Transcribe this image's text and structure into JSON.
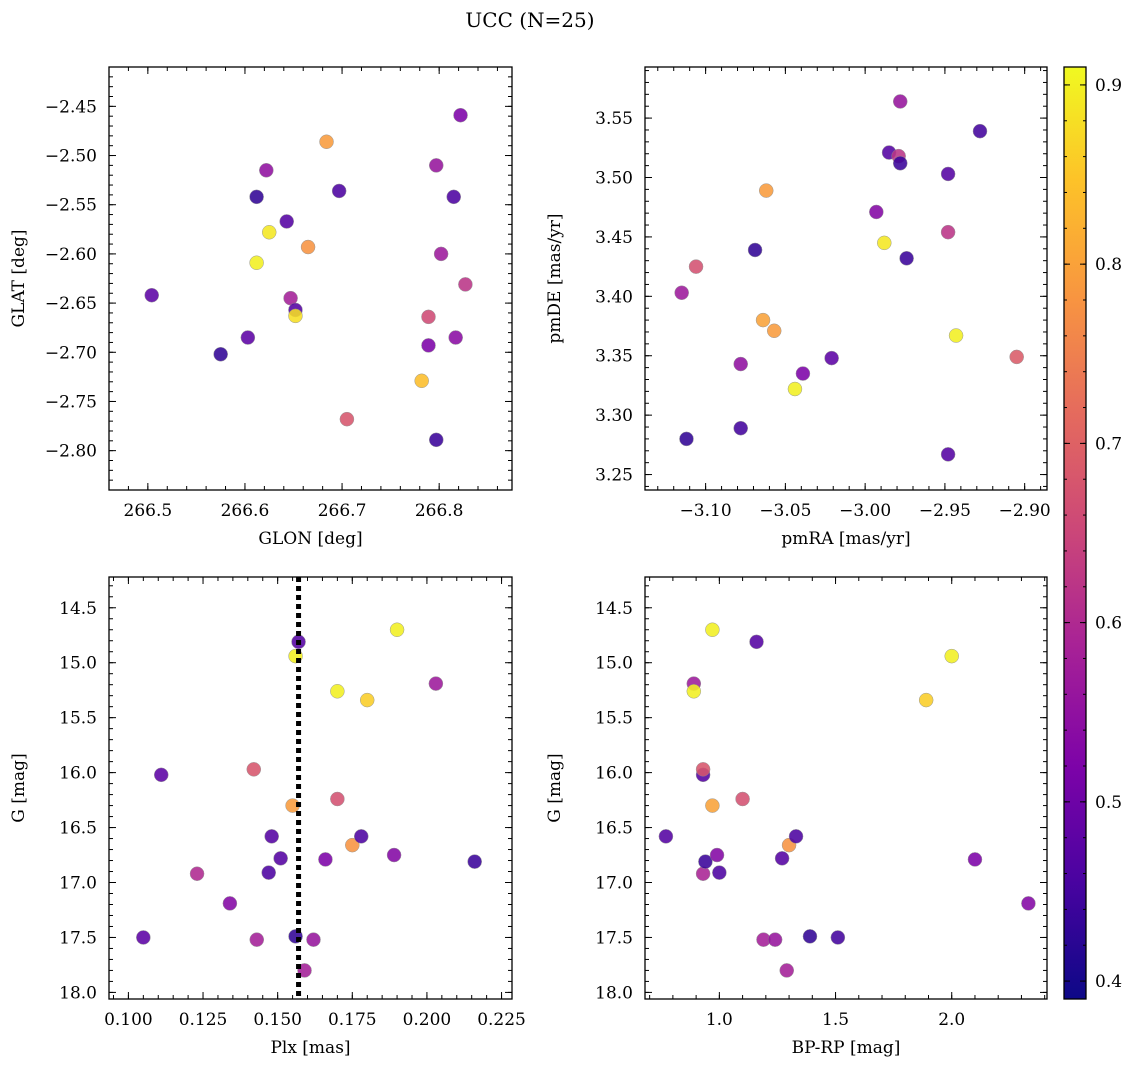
{
  "title": "UCC (N=25)",
  "colors": {
    "colormap": "plasma",
    "dotted_line": "#000000"
  },
  "colorbar": {
    "vmin": 0.39,
    "vmax": 0.91,
    "ticks": [
      "0.4",
      "0.5",
      "0.6",
      "0.7",
      "0.8",
      "0.9"
    ]
  },
  "chart_data": [
    {
      "type": "scatter",
      "xlabel": "GLON [deg]",
      "ylabel": "GLAT [deg]",
      "xlim": [
        266.46,
        266.875
      ],
      "ylim": [
        -2.84,
        -2.41
      ],
      "y_inverted": false,
      "xticks": [
        "266.5",
        "266.6",
        "266.7",
        "266.8"
      ],
      "yticks": [
        "-2.45",
        "-2.50",
        "-2.55",
        "-2.60",
        "-2.65",
        "-2.70",
        "-2.75",
        "-2.80"
      ],
      "points": [
        {
          "x": 266.504,
          "y": -2.642,
          "c": 0.48
        },
        {
          "x": 266.575,
          "y": -2.702,
          "c": 0.43
        },
        {
          "x": 266.603,
          "y": -2.685,
          "c": 0.48
        },
        {
          "x": 266.612,
          "y": -2.542,
          "c": 0.43
        },
        {
          "x": 266.612,
          "y": -2.609,
          "c": 0.9
        },
        {
          "x": 266.622,
          "y": -2.515,
          "c": 0.55
        },
        {
          "x": 266.625,
          "y": -2.578,
          "c": 0.89
        },
        {
          "x": 266.643,
          "y": -2.567,
          "c": 0.47
        },
        {
          "x": 266.647,
          "y": -2.645,
          "c": 0.58
        },
        {
          "x": 266.652,
          "y": -2.657,
          "c": 0.47
        },
        {
          "x": 266.652,
          "y": -2.663,
          "c": 0.88
        },
        {
          "x": 266.665,
          "y": -2.593,
          "c": 0.78
        },
        {
          "x": 266.684,
          "y": -2.486,
          "c": 0.79
        },
        {
          "x": 266.697,
          "y": -2.536,
          "c": 0.46
        },
        {
          "x": 266.705,
          "y": -2.768,
          "c": 0.68
        },
        {
          "x": 266.782,
          "y": -2.729,
          "c": 0.84
        },
        {
          "x": 266.789,
          "y": -2.664,
          "c": 0.66
        },
        {
          "x": 266.789,
          "y": -2.693,
          "c": 0.52
        },
        {
          "x": 266.797,
          "y": -2.51,
          "c": 0.56
        },
        {
          "x": 266.797,
          "y": -2.789,
          "c": 0.44
        },
        {
          "x": 266.802,
          "y": -2.6,
          "c": 0.57
        },
        {
          "x": 266.815,
          "y": -2.542,
          "c": 0.46
        },
        {
          "x": 266.817,
          "y": -2.685,
          "c": 0.54
        },
        {
          "x": 266.822,
          "y": -2.459,
          "c": 0.52
        },
        {
          "x": 266.827,
          "y": -2.631,
          "c": 0.62
        }
      ]
    },
    {
      "type": "scatter",
      "xlabel": "pmRA [mas/yr]",
      "ylabel": "pmDE [mas/yr]",
      "xlim": [
        -3.138,
        -2.886
      ],
      "ylim": [
        3.237,
        3.593
      ],
      "y_inverted": false,
      "xticks": [
        "-3.10",
        "-3.05",
        "-3.00",
        "-2.95",
        "-2.90"
      ],
      "yticks": [
        "3.25",
        "3.30",
        "3.35",
        "3.40",
        "3.45",
        "3.50",
        "3.55"
      ],
      "points": [
        {
          "x": -3.115,
          "y": 3.403,
          "c": 0.57
        },
        {
          "x": -3.112,
          "y": 3.28,
          "c": 0.43
        },
        {
          "x": -3.106,
          "y": 3.425,
          "c": 0.67
        },
        {
          "x": -3.078,
          "y": 3.343,
          "c": 0.55
        },
        {
          "x": -3.078,
          "y": 3.289,
          "c": 0.45
        },
        {
          "x": -3.069,
          "y": 3.439,
          "c": 0.43
        },
        {
          "x": -3.064,
          "y": 3.38,
          "c": 0.8
        },
        {
          "x": -3.062,
          "y": 3.489,
          "c": 0.79
        },
        {
          "x": -3.057,
          "y": 3.371,
          "c": 0.79
        },
        {
          "x": -3.044,
          "y": 3.322,
          "c": 0.9
        },
        {
          "x": -3.039,
          "y": 3.335,
          "c": 0.52
        },
        {
          "x": -3.021,
          "y": 3.348,
          "c": 0.48
        },
        {
          "x": -2.993,
          "y": 3.471,
          "c": 0.53
        },
        {
          "x": -2.988,
          "y": 3.445,
          "c": 0.89
        },
        {
          "x": -2.985,
          "y": 3.521,
          "c": 0.47
        },
        {
          "x": -2.979,
          "y": 3.518,
          "c": 0.62
        },
        {
          "x": -2.978,
          "y": 3.512,
          "c": 0.44
        },
        {
          "x": -2.978,
          "y": 3.564,
          "c": 0.56
        },
        {
          "x": -2.974,
          "y": 3.432,
          "c": 0.44
        },
        {
          "x": -2.948,
          "y": 3.503,
          "c": 0.47
        },
        {
          "x": -2.948,
          "y": 3.454,
          "c": 0.62
        },
        {
          "x": -2.948,
          "y": 3.267,
          "c": 0.47
        },
        {
          "x": -2.943,
          "y": 3.367,
          "c": 0.9
        },
        {
          "x": -2.928,
          "y": 3.539,
          "c": 0.45
        },
        {
          "x": -2.905,
          "y": 3.349,
          "c": 0.69
        }
      ]
    },
    {
      "type": "scatter",
      "xlabel": "Plx [mas]",
      "ylabel": "G [mag]",
      "xlim": [
        0.0935,
        0.2285
      ],
      "ylim": [
        14.22,
        18.06
      ],
      "y_inverted": true,
      "vline": 0.157,
      "xticks": [
        "0.100",
        "0.125",
        "0.150",
        "0.175",
        "0.200",
        "0.225"
      ],
      "yticks": [
        "14.5",
        "15.0",
        "15.5",
        "16.0",
        "16.5",
        "17.0",
        "17.5",
        "18.0"
      ],
      "points": [
        {
          "x": 0.105,
          "y": 17.5,
          "c": 0.48
        },
        {
          "x": 0.111,
          "y": 16.02,
          "c": 0.48
        },
        {
          "x": 0.123,
          "y": 16.92,
          "c": 0.6
        },
        {
          "x": 0.134,
          "y": 17.19,
          "c": 0.53
        },
        {
          "x": 0.142,
          "y": 15.97,
          "c": 0.68
        },
        {
          "x": 0.143,
          "y": 17.52,
          "c": 0.58
        },
        {
          "x": 0.147,
          "y": 16.91,
          "c": 0.46
        },
        {
          "x": 0.148,
          "y": 16.58,
          "c": 0.47
        },
        {
          "x": 0.151,
          "y": 16.78,
          "c": 0.47
        },
        {
          "x": 0.155,
          "y": 16.3,
          "c": 0.79
        },
        {
          "x": 0.156,
          "y": 14.94,
          "c": 0.9
        },
        {
          "x": 0.156,
          "y": 17.49,
          "c": 0.43
        },
        {
          "x": 0.157,
          "y": 14.81,
          "c": 0.47
        },
        {
          "x": 0.159,
          "y": 17.8,
          "c": 0.58
        },
        {
          "x": 0.162,
          "y": 17.52,
          "c": 0.56
        },
        {
          "x": 0.166,
          "y": 16.79,
          "c": 0.52
        },
        {
          "x": 0.17,
          "y": 16.24,
          "c": 0.67
        },
        {
          "x": 0.17,
          "y": 15.26,
          "c": 0.9
        },
        {
          "x": 0.175,
          "y": 16.66,
          "c": 0.78
        },
        {
          "x": 0.178,
          "y": 16.58,
          "c": 0.46
        },
        {
          "x": 0.18,
          "y": 15.34,
          "c": 0.86
        },
        {
          "x": 0.189,
          "y": 16.75,
          "c": 0.53
        },
        {
          "x": 0.19,
          "y": 14.7,
          "c": 0.9
        },
        {
          "x": 0.203,
          "y": 15.19,
          "c": 0.57
        },
        {
          "x": 0.216,
          "y": 16.81,
          "c": 0.44
        }
      ]
    },
    {
      "type": "scatter",
      "xlabel": "BP-RP [mag]",
      "ylabel": "G [mag]",
      "xlim": [
        0.68,
        2.41
      ],
      "ylim": [
        14.22,
        18.06
      ],
      "y_inverted": true,
      "xticks": [
        "1.0",
        "1.5",
        "2.0"
      ],
      "yticks": [
        "14.5",
        "15.0",
        "15.5",
        "16.0",
        "16.5",
        "17.0",
        "17.5",
        "18.0"
      ],
      "points": [
        {
          "x": 0.77,
          "y": 16.58,
          "c": 0.47
        },
        {
          "x": 0.89,
          "y": 15.19,
          "c": 0.57
        },
        {
          "x": 0.89,
          "y": 15.26,
          "c": 0.9
        },
        {
          "x": 0.93,
          "y": 16.02,
          "c": 0.47
        },
        {
          "x": 0.93,
          "y": 15.97,
          "c": 0.68
        },
        {
          "x": 0.93,
          "y": 16.92,
          "c": 0.59
        },
        {
          "x": 0.94,
          "y": 16.81,
          "c": 0.44
        },
        {
          "x": 0.97,
          "y": 14.7,
          "c": 0.9
        },
        {
          "x": 0.97,
          "y": 16.3,
          "c": 0.8
        },
        {
          "x": 0.99,
          "y": 16.75,
          "c": 0.53
        },
        {
          "x": 1.0,
          "y": 16.91,
          "c": 0.46
        },
        {
          "x": 1.1,
          "y": 16.24,
          "c": 0.67
        },
        {
          "x": 1.16,
          "y": 14.81,
          "c": 0.47
        },
        {
          "x": 1.19,
          "y": 17.52,
          "c": 0.58
        },
        {
          "x": 1.24,
          "y": 17.52,
          "c": 0.56
        },
        {
          "x": 1.27,
          "y": 16.78,
          "c": 0.47
        },
        {
          "x": 1.29,
          "y": 17.8,
          "c": 0.58
        },
        {
          "x": 1.3,
          "y": 16.66,
          "c": 0.78
        },
        {
          "x": 1.33,
          "y": 16.58,
          "c": 0.46
        },
        {
          "x": 1.39,
          "y": 17.49,
          "c": 0.43
        },
        {
          "x": 1.51,
          "y": 17.5,
          "c": 0.45
        },
        {
          "x": 1.89,
          "y": 15.34,
          "c": 0.86
        },
        {
          "x": 2.0,
          "y": 14.94,
          "c": 0.9
        },
        {
          "x": 2.1,
          "y": 16.79,
          "c": 0.52
        },
        {
          "x": 2.33,
          "y": 17.19,
          "c": 0.53
        }
      ]
    }
  ]
}
